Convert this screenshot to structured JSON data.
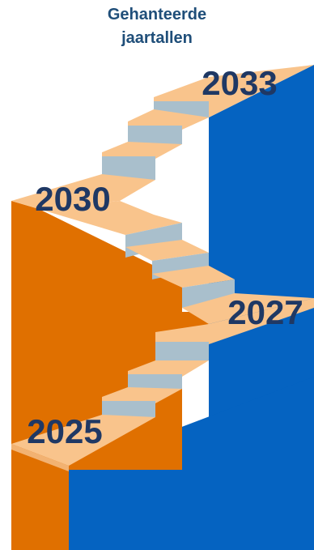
{
  "title": {
    "line1": "Gehanteerde",
    "line2": "jaartallen"
  },
  "years": [
    "2025",
    "2027",
    "2030",
    "2033"
  ],
  "colors": {
    "title": "#1f4e79",
    "labels": "#1f3864",
    "tread": "#f9c48c",
    "riser": "#a9bfcc",
    "blue_wall": "#0563c1",
    "orange_wall": "#e07000",
    "background": "#ffffff"
  }
}
